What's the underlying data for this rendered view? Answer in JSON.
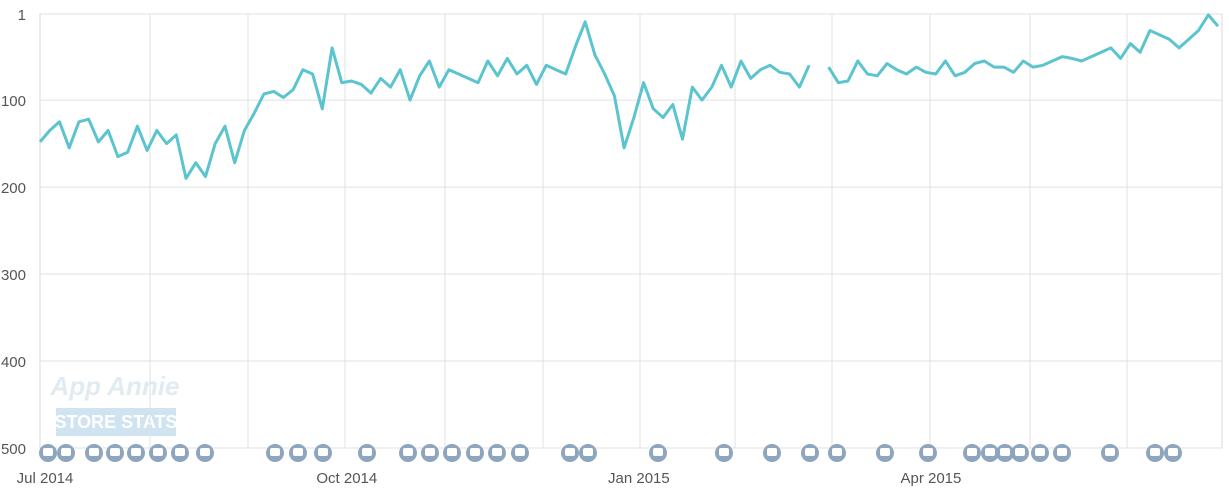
{
  "chart_data": {
    "type": "line",
    "categories": [
      "Jul 2014",
      null,
      null,
      null,
      null,
      null,
      null,
      null,
      null,
      null,
      null,
      null,
      null,
      null,
      null,
      null,
      null,
      null,
      null,
      null,
      null,
      null,
      null,
      null,
      null,
      null,
      null,
      null,
      null,
      null,
      null,
      "Oct 2014",
      null,
      null,
      null,
      null,
      null,
      null,
      null,
      null,
      null,
      null,
      null,
      null,
      null,
      null,
      null,
      null,
      null,
      null,
      null,
      null,
      null,
      null,
      null,
      null,
      null,
      null,
      null,
      null,
      null,
      "Jan 2015",
      null,
      null,
      null,
      null,
      null,
      null,
      null,
      null,
      null,
      null,
      null,
      null,
      null,
      null,
      null,
      null,
      null,
      null,
      null,
      null,
      null,
      null,
      null,
      null,
      null,
      null,
      null,
      null,
      null,
      "Apr 2015",
      null,
      null,
      null,
      null,
      null,
      null,
      null,
      null,
      null,
      null,
      null,
      null,
      null,
      null,
      null,
      null,
      null,
      null,
      null,
      null,
      null,
      null,
      null,
      null,
      null,
      null,
      null,
      null,
      null,
      null
    ],
    "series": [
      {
        "color": "#5bc4cf",
        "values": [
          148,
          135,
          125,
          155,
          125,
          122,
          148,
          135,
          165,
          160,
          130,
          158,
          135,
          150,
          140,
          190,
          172,
          188,
          150,
          130,
          172,
          135,
          115,
          93,
          90,
          97,
          88,
          65,
          70,
          110,
          40,
          80,
          78,
          82,
          92,
          75,
          85,
          65,
          100,
          72,
          55,
          85,
          65,
          70,
          75,
          80,
          55,
          72,
          52,
          70,
          60,
          82,
          60,
          65,
          70,
          38,
          10,
          48,
          70,
          95,
          155,
          120,
          80,
          110,
          120,
          105,
          145,
          85,
          100,
          85,
          60,
          85,
          55,
          75,
          65,
          60,
          68,
          70,
          85,
          60,
          null,
          62,
          80,
          78,
          55,
          70,
          72,
          58,
          65,
          70,
          62,
          68,
          70,
          55,
          72,
          68,
          58,
          55,
          62,
          62,
          68,
          55,
          62,
          60,
          55,
          50,
          52,
          55,
          50,
          45,
          40,
          52,
          35,
          45,
          20,
          25,
          30,
          40,
          30,
          20,
          2,
          15
        ]
      }
    ],
    "ylim": [
      1,
      500
    ],
    "y_inverted": true,
    "yticks": [
      1,
      100,
      200,
      300,
      400,
      500
    ],
    "grid": true,
    "watermark": [
      "App Annie",
      "STORE STATS"
    ]
  }
}
